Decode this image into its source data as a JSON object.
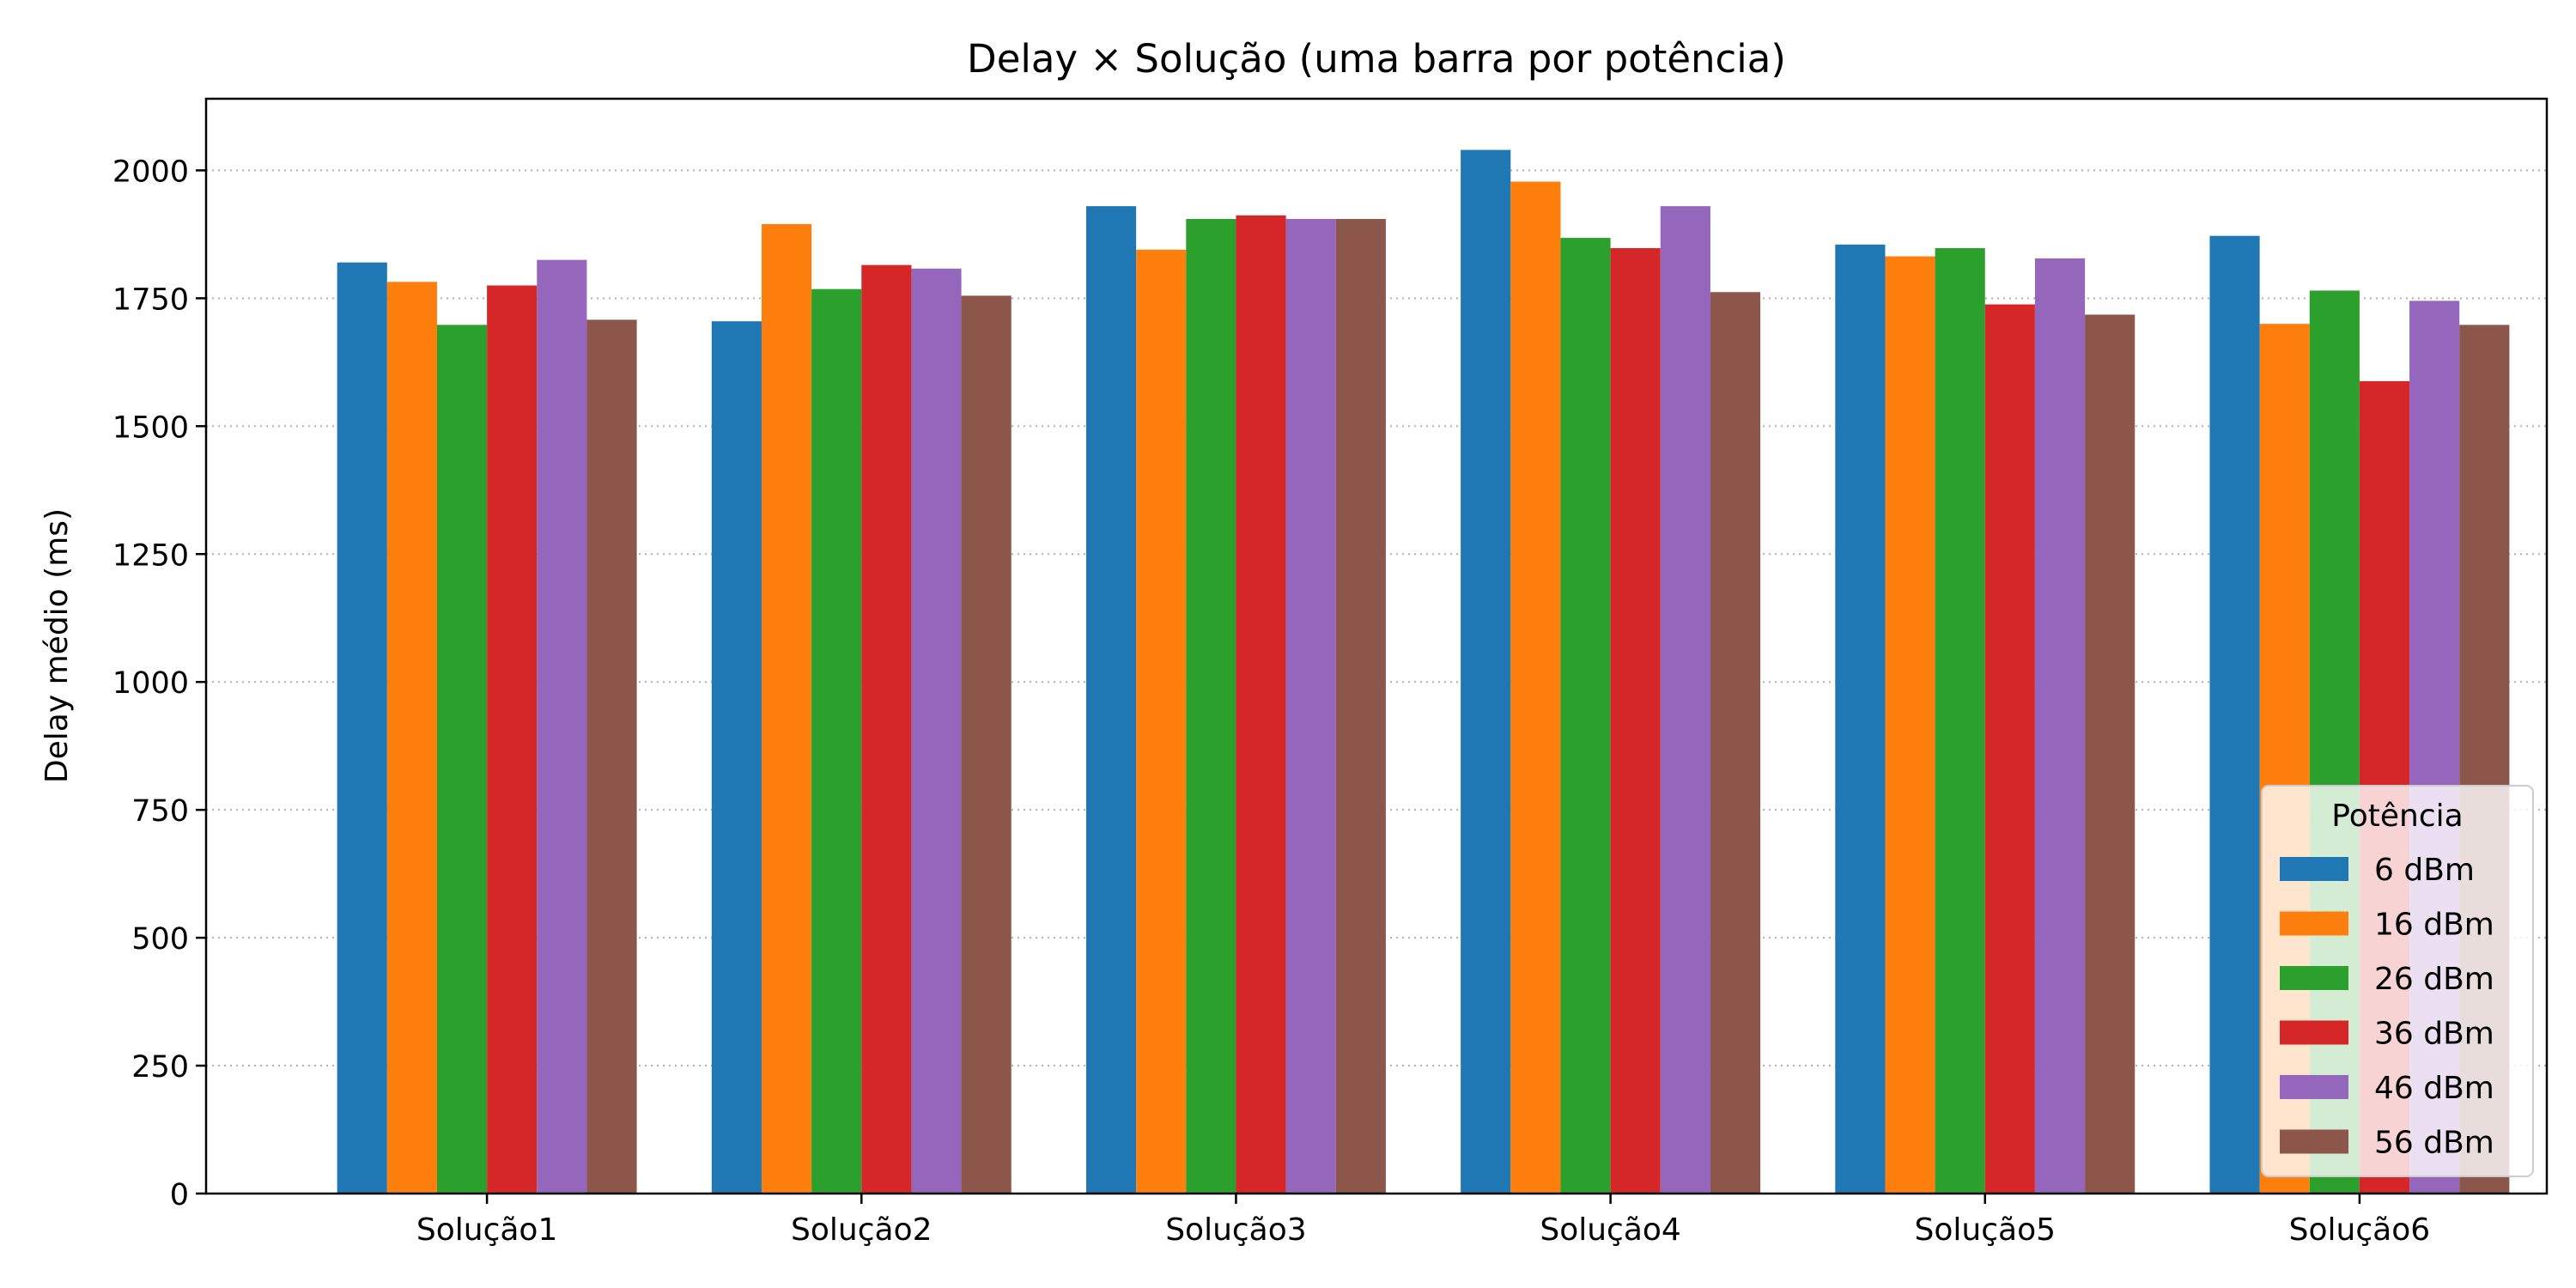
{
  "chart_data": {
    "type": "bar",
    "title": "Delay × Solução (uma barra por potência)",
    "xlabel": "",
    "ylabel": "Delay médio (ms)",
    "ylim": [
      0,
      2140
    ],
    "yticks": [
      0,
      250,
      500,
      750,
      1000,
      1250,
      1500,
      1750,
      2000
    ],
    "grid": "y-dotted",
    "legend_placement": "lower-right",
    "legend_title": "Potência",
    "categories": [
      "Solução1",
      "Solução2",
      "Solução3",
      "Solução4",
      "Solução5",
      "Solução6"
    ],
    "series": [
      {
        "name": "6 dBm",
        "color": "#1f77b4",
        "values": [
          1820,
          1705,
          1930,
          2040,
          1855,
          1872
        ]
      },
      {
        "name": "16 dBm",
        "color": "#ff7f0e",
        "values": [
          1782,
          1895,
          1845,
          1978,
          1832,
          1700
        ]
      },
      {
        "name": "26 dBm",
        "color": "#2ca02c",
        "values": [
          1698,
          1768,
          1905,
          1868,
          1848,
          1765
        ]
      },
      {
        "name": "36 dBm",
        "color": "#d62728",
        "values": [
          1775,
          1815,
          1912,
          1848,
          1738,
          1588
        ]
      },
      {
        "name": "46 dBm",
        "color": "#9467bd",
        "values": [
          1825,
          1808,
          1905,
          1930,
          1828,
          1745
        ]
      },
      {
        "name": "56 dBm",
        "color": "#8c564b",
        "values": [
          1708,
          1755,
          1905,
          1762,
          1718,
          1698
        ]
      }
    ]
  }
}
